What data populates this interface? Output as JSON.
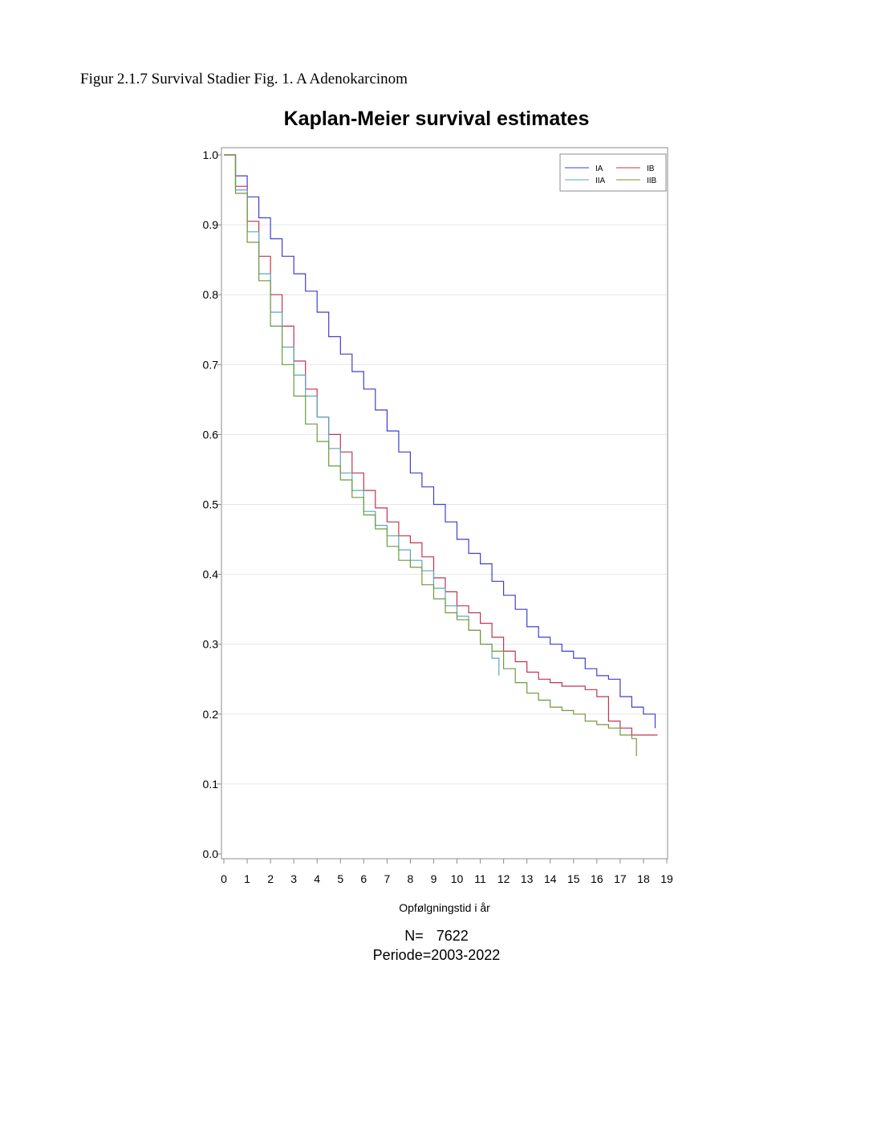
{
  "caption": "Figur 2.1.7 Survival Stadier Fig. 1. A Adenokarcinom",
  "notes": {
    "n_label": "N=",
    "n_value": "7622",
    "period": "Periode=2003-2022"
  },
  "chart_data": {
    "type": "line",
    "step": true,
    "title": "Kaplan-Meier survival estimates",
    "xlabel": "Opfølgningstid i år",
    "ylabel": "",
    "xlim": [
      0,
      19
    ],
    "ylim": [
      0,
      1
    ],
    "xticks": [
      0,
      1,
      2,
      3,
      4,
      5,
      6,
      7,
      8,
      9,
      10,
      11,
      12,
      13,
      14,
      15,
      16,
      17,
      18,
      19
    ],
    "yticks": [
      "0.0",
      "0.1",
      "0.2",
      "0.3",
      "0.4",
      "0.5",
      "0.6",
      "0.7",
      "0.8",
      "0.9",
      "1.0"
    ],
    "grid": "horizontal",
    "legend_position": "top-right",
    "series": [
      {
        "name": "IA",
        "color": "#3f3fcf",
        "x": [
          0,
          0.5,
          1,
          1.5,
          2,
          2.5,
          3,
          3.5,
          4,
          4.5,
          5,
          5.5,
          6,
          6.5,
          7,
          7.5,
          8,
          8.5,
          9,
          9.5,
          10,
          10.5,
          11,
          11.5,
          12,
          12.5,
          13,
          13.5,
          14,
          14.5,
          15,
          15.5,
          16,
          16.5,
          17,
          17.5,
          18,
          18.5
        ],
        "y": [
          1.0,
          0.97,
          0.94,
          0.91,
          0.88,
          0.855,
          0.83,
          0.805,
          0.775,
          0.74,
          0.715,
          0.69,
          0.665,
          0.635,
          0.605,
          0.575,
          0.545,
          0.525,
          0.5,
          0.475,
          0.45,
          0.43,
          0.415,
          0.39,
          0.37,
          0.35,
          0.325,
          0.31,
          0.3,
          0.29,
          0.28,
          0.265,
          0.255,
          0.25,
          0.225,
          0.21,
          0.2,
          0.18
        ]
      },
      {
        "name": "IB",
        "color": "#c0344f",
        "x": [
          0,
          0.5,
          1,
          1.5,
          2,
          2.5,
          3,
          3.5,
          4,
          4.5,
          5,
          5.5,
          6,
          6.5,
          7,
          7.5,
          8,
          8.5,
          9,
          9.5,
          10,
          10.5,
          11,
          11.5,
          12,
          12.5,
          13,
          13.5,
          14,
          14.5,
          15,
          15.5,
          16,
          16.5,
          17,
          17.5,
          18,
          18.6
        ],
        "y": [
          1.0,
          0.955,
          0.905,
          0.855,
          0.8,
          0.755,
          0.705,
          0.665,
          0.625,
          0.6,
          0.575,
          0.545,
          0.52,
          0.495,
          0.475,
          0.455,
          0.445,
          0.425,
          0.395,
          0.375,
          0.355,
          0.345,
          0.33,
          0.31,
          0.29,
          0.275,
          0.26,
          0.25,
          0.245,
          0.24,
          0.24,
          0.235,
          0.225,
          0.19,
          0.18,
          0.17,
          0.17,
          0.17
        ]
      },
      {
        "name": "IIA",
        "color": "#5aa8b8",
        "x": [
          0,
          0.5,
          1,
          1.5,
          2,
          2.5,
          3,
          3.5,
          4,
          4.5,
          5,
          5.5,
          6,
          6.5,
          7,
          7.5,
          8,
          8.5,
          9,
          9.5,
          10,
          10.5,
          11,
          11.5,
          11.8
        ],
        "y": [
          1.0,
          0.95,
          0.89,
          0.83,
          0.775,
          0.725,
          0.685,
          0.655,
          0.625,
          0.58,
          0.545,
          0.52,
          0.49,
          0.47,
          0.455,
          0.435,
          0.42,
          0.405,
          0.38,
          0.355,
          0.34,
          0.32,
          0.3,
          0.28,
          0.255
        ]
      },
      {
        "name": "IIB",
        "color": "#6f9a3a",
        "x": [
          0,
          0.5,
          1,
          1.5,
          2,
          2.5,
          3,
          3.5,
          4,
          4.5,
          5,
          5.5,
          6,
          6.5,
          7,
          7.5,
          8,
          8.5,
          9,
          9.5,
          10,
          10.5,
          11,
          11.5,
          12,
          12.5,
          13,
          13.5,
          14,
          14.5,
          15,
          15.5,
          16,
          16.5,
          17,
          17.5,
          17.7
        ],
        "y": [
          1.0,
          0.945,
          0.875,
          0.82,
          0.755,
          0.7,
          0.655,
          0.615,
          0.59,
          0.555,
          0.535,
          0.51,
          0.485,
          0.465,
          0.44,
          0.42,
          0.41,
          0.385,
          0.365,
          0.345,
          0.335,
          0.32,
          0.3,
          0.29,
          0.265,
          0.245,
          0.23,
          0.22,
          0.21,
          0.205,
          0.2,
          0.19,
          0.185,
          0.18,
          0.17,
          0.165,
          0.14
        ]
      }
    ]
  }
}
